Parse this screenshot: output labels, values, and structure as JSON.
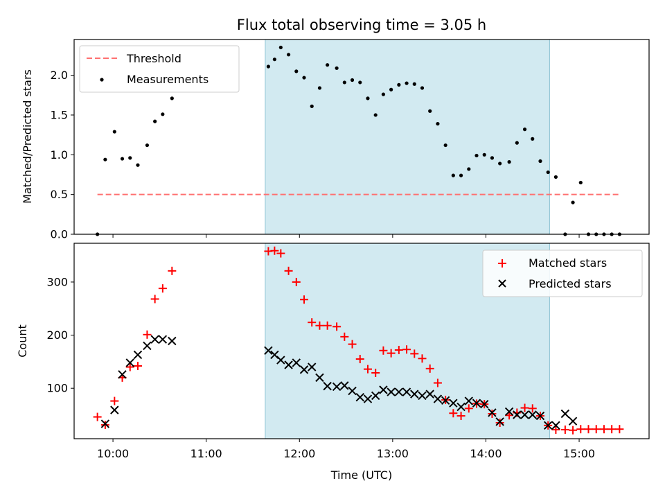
{
  "colors": {
    "matched": "#ff0000",
    "predicted": "#000000",
    "threshold": "#ff7070",
    "measurements": "#000000",
    "observing_window": "#add8e6"
  },
  "chart_data": [
    {
      "type": "scatter",
      "title": "Flux total observing time = 3.05 h",
      "xlabel": "",
      "ylabel": "Matched/Predicted stars",
      "xlim": [
        "09:35",
        "15:45"
      ],
      "ylim": [
        0,
        2.45
      ],
      "yticks": [
        "0.0",
        "0.5",
        "1.0",
        "1.5",
        "2.0"
      ],
      "shaded_window": [
        "11:38",
        "14:41"
      ],
      "legend": {
        "position": "upper-left",
        "entries": [
          "Threshold",
          "Measurements"
        ]
      },
      "threshold": {
        "name": "Threshold",
        "value": 0.5,
        "x_range": [
          "09:50",
          "15:27"
        ]
      },
      "series": [
        {
          "name": "Measurements",
          "x": [
            "09:50",
            "09:55",
            "10:01",
            "10:06",
            "10:11",
            "10:16",
            "10:22",
            "10:27",
            "10:32",
            "10:38",
            "11:40",
            "11:44",
            "11:48",
            "11:53",
            "11:58",
            "12:03",
            "12:08",
            "12:13",
            "12:18",
            "12:24",
            "12:29",
            "12:34",
            "12:39",
            "12:44",
            "12:49",
            "12:54",
            "12:59",
            "13:04",
            "13:09",
            "13:14",
            "13:19",
            "13:24",
            "13:29",
            "13:34",
            "13:39",
            "13:44",
            "13:49",
            "13:54",
            "13:59",
            "14:04",
            "14:09",
            "14:15",
            "14:20",
            "14:25",
            "14:30",
            "14:35",
            "14:40",
            "14:45",
            "14:51",
            "14:56",
            "15:01",
            "15:06",
            "15:11",
            "15:16",
            "15:21",
            "15:26"
          ],
          "y": [
            0.0,
            0.94,
            1.29,
            0.95,
            0.96,
            0.87,
            1.12,
            1.42,
            1.51,
            1.71,
            2.11,
            2.2,
            2.35,
            2.26,
            2.05,
            1.97,
            1.61,
            1.84,
            2.13,
            2.09,
            1.91,
            1.94,
            1.91,
            1.71,
            1.5,
            1.76,
            1.82,
            1.88,
            1.9,
            1.89,
            1.84,
            1.55,
            1.39,
            1.12,
            0.74,
            0.74,
            0.82,
            0.99,
            1.0,
            0.96,
            0.89,
            0.91,
            1.15,
            1.32,
            1.2,
            0.92,
            0.78,
            0.72,
            0.0,
            0.4,
            0.65,
            0.0,
            0.0,
            0.0,
            0.0,
            0.0
          ]
        }
      ]
    },
    {
      "type": "scatter",
      "title": "",
      "xlabel": "Time (UTC)",
      "ylabel": "Count",
      "xlim": [
        "09:35",
        "15:45"
      ],
      "xticks": [
        "10:00",
        "11:00",
        "12:00",
        "13:00",
        "14:00",
        "15:00"
      ],
      "ylim": [
        5,
        373
      ],
      "yticks": [
        "100",
        "200",
        "300"
      ],
      "shaded_window": [
        "11:38",
        "14:41"
      ],
      "legend": {
        "position": "upper-right",
        "entries": [
          "Matched stars",
          "Predicted stars"
        ]
      },
      "series": [
        {
          "name": "Matched stars",
          "marker": "+",
          "x": [
            "09:50",
            "09:55",
            "10:01",
            "10:06",
            "10:11",
            "10:16",
            "10:22",
            "10:27",
            "10:32",
            "10:38",
            "11:40",
            "11:44",
            "11:48",
            "11:53",
            "11:58",
            "12:03",
            "12:08",
            "12:13",
            "12:18",
            "12:24",
            "12:29",
            "12:34",
            "12:39",
            "12:44",
            "12:49",
            "12:54",
            "12:59",
            "13:04",
            "13:09",
            "13:14",
            "13:19",
            "13:24",
            "13:29",
            "13:34",
            "13:39",
            "13:44",
            "13:49",
            "13:54",
            "13:59",
            "14:04",
            "14:09",
            "14:15",
            "14:20",
            "14:25",
            "14:30",
            "14:35",
            "14:40",
            "14:45",
            "14:51",
            "14:56",
            "15:01",
            "15:06",
            "15:11",
            "15:16",
            "15:21",
            "15:26"
          ],
          "y": [
            46,
            31,
            76,
            120,
            140,
            142,
            201,
            268,
            288,
            321,
            358,
            359,
            354,
            321,
            300,
            267,
            224,
            218,
            218,
            216,
            197,
            183,
            155,
            136,
            129,
            171,
            166,
            172,
            173,
            165,
            156,
            137,
            110,
            78,
            53,
            48,
            62,
            71,
            70,
            52,
            35,
            49,
            54,
            63,
            62,
            48,
            30,
            22,
            22,
            21,
            23,
            23,
            23,
            23,
            23,
            23
          ]
        },
        {
          "name": "Predicted stars",
          "marker": "x",
          "x": [
            "09:55",
            "10:01",
            "10:06",
            "10:11",
            "10:16",
            "10:22",
            "10:27",
            "10:32",
            "10:38",
            "11:40",
            "11:44",
            "11:48",
            "11:53",
            "11:58",
            "12:03",
            "12:08",
            "12:13",
            "12:18",
            "12:24",
            "12:29",
            "12:34",
            "12:39",
            "12:44",
            "12:49",
            "12:54",
            "12:59",
            "13:04",
            "13:09",
            "13:14",
            "13:19",
            "13:24",
            "13:29",
            "13:34",
            "13:39",
            "13:44",
            "13:49",
            "13:54",
            "13:59",
            "14:04",
            "14:09",
            "14:15",
            "14:20",
            "14:25",
            "14:30",
            "14:35",
            "14:40",
            "14:45",
            "14:51",
            "14:56"
          ],
          "y": [
            33,
            59,
            126,
            148,
            163,
            180,
            192,
            192,
            189,
            171,
            163,
            153,
            144,
            148,
            135,
            140,
            120,
            104,
            103,
            105,
            95,
            83,
            80,
            86,
            97,
            93,
            93,
            93,
            89,
            86,
            89,
            80,
            77,
            72,
            65,
            76,
            72,
            70,
            54,
            37,
            56,
            50,
            50,
            50,
            48,
            30,
            30,
            52,
            38
          ]
        }
      ]
    }
  ]
}
